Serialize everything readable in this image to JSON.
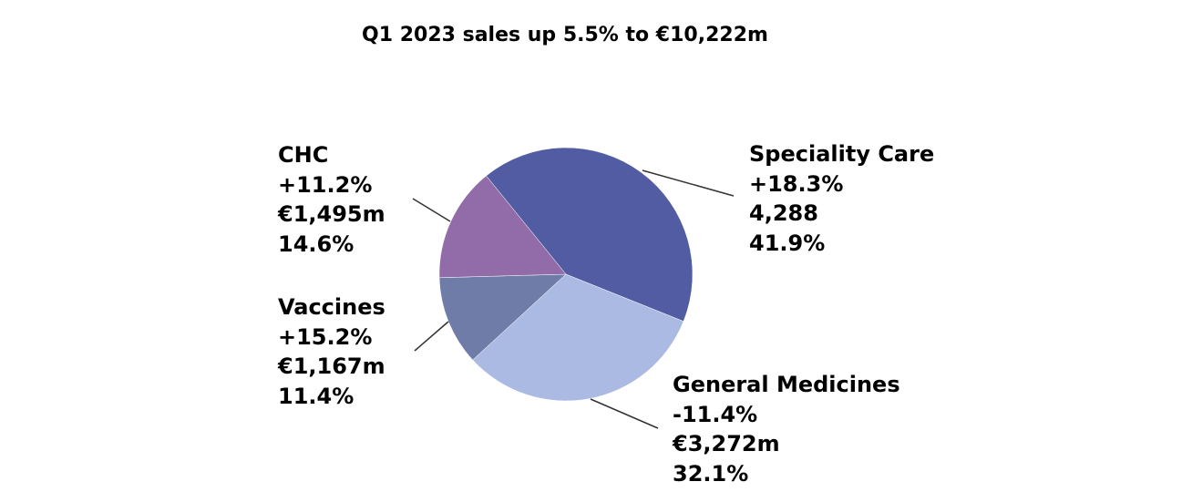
{
  "chart_data": {
    "type": "pie",
    "title": "Q1 2023 sales up 5.5% to €10,222m",
    "start_angle_deg": -39,
    "slices": [
      {
        "name": "Speciality Care",
        "growth": "+18.3%",
        "sales": "4,288",
        "share_label": "41.9%",
        "value": 41.9,
        "color": "#525ca3"
      },
      {
        "name": "General Medicines",
        "growth": "-11.4%",
        "sales": "€3,272m",
        "share_label": "32.1%",
        "value": 32.1,
        "color": "#abbae2"
      },
      {
        "name": "Vaccines",
        "growth": "+15.2%",
        "sales": "€1,167m",
        "share_label": "11.4%",
        "value": 11.4,
        "color": "#707ca8"
      },
      {
        "name": "CHC",
        "growth": "+11.2%",
        "sales": "€1,495m",
        "share_label": "14.6%",
        "value": 14.6,
        "color": "#916ca9"
      }
    ]
  }
}
